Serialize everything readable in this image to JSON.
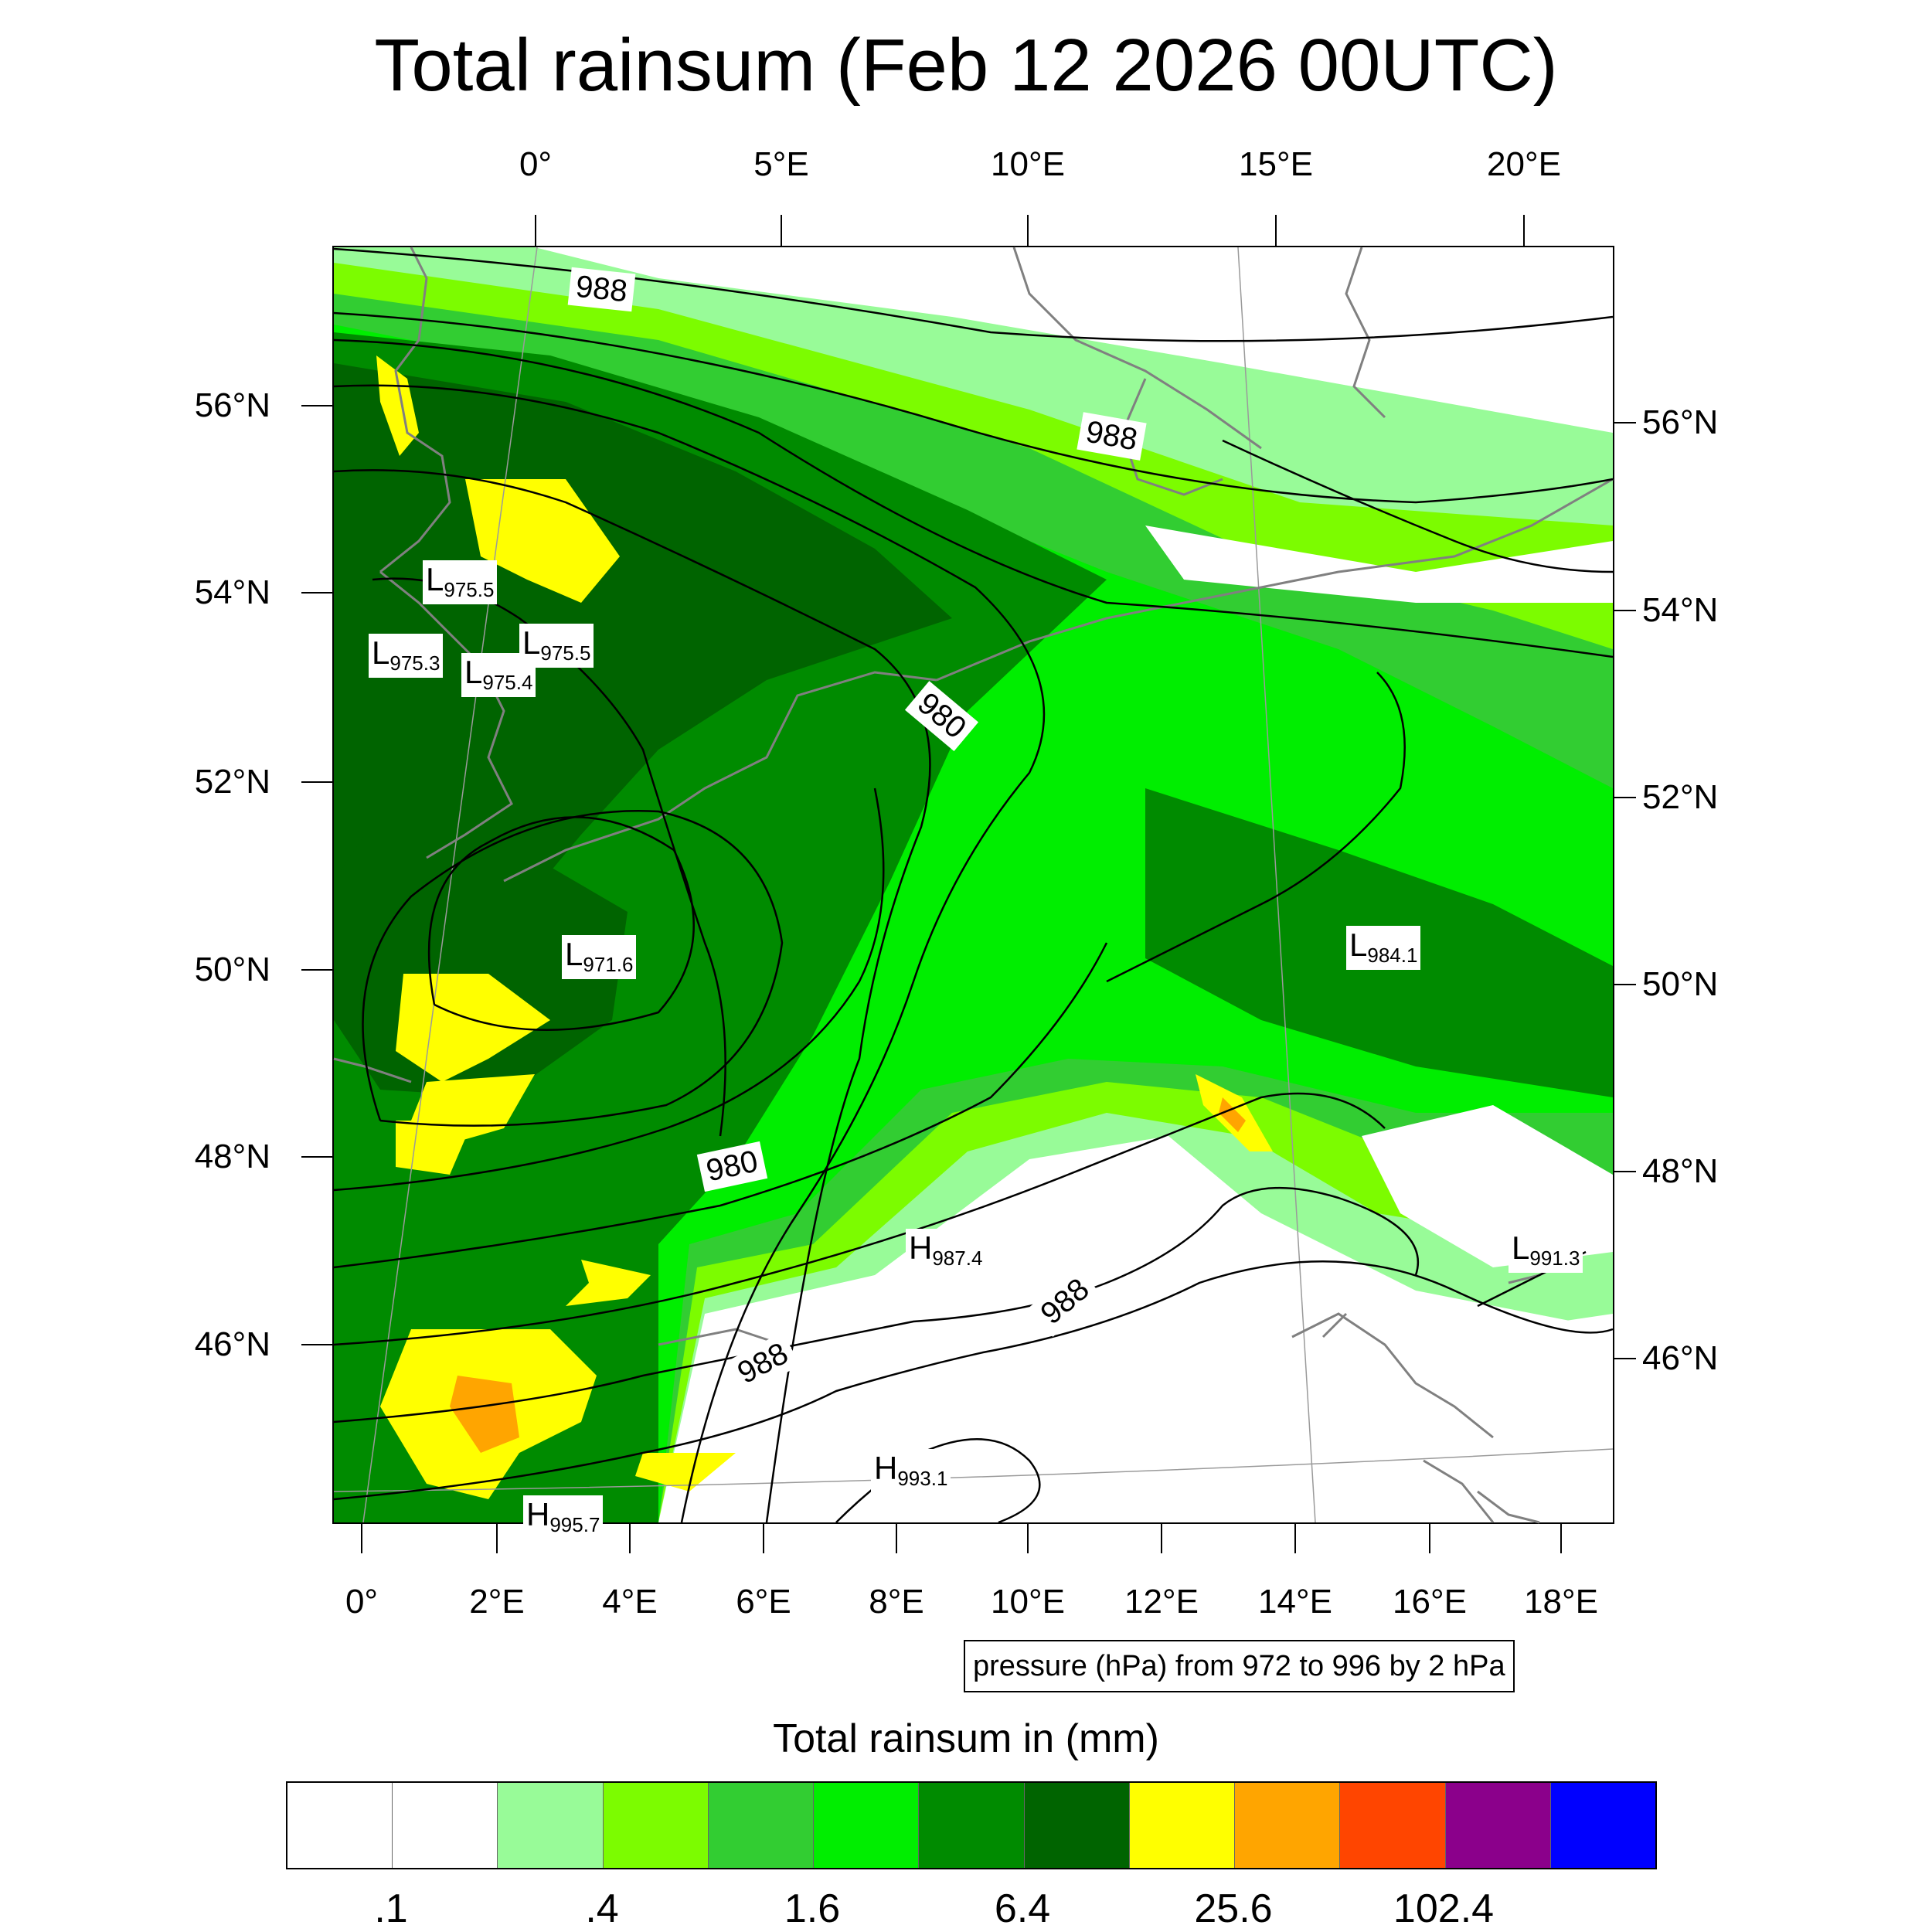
{
  "title": "Total rainsum (Feb 12 2026 00UTC)",
  "top_lon_labels": [
    "0°",
    "5°E",
    "10°E",
    "15°E",
    "20°E"
  ],
  "bottom_lon_labels": [
    "0°",
    "2°E",
    "4°E",
    "6°E",
    "8°E",
    "10°E",
    "12°E",
    "14°E",
    "16°E",
    "18°E"
  ],
  "left_lat_labels": [
    "56°N",
    "54°N",
    "52°N",
    "50°N",
    "48°N",
    "46°N"
  ],
  "right_lat_labels": [
    "56°N",
    "54°N",
    "52°N",
    "50°N",
    "48°N",
    "46°N"
  ],
  "lows": [
    {
      "letter": "L",
      "value": "975.5"
    },
    {
      "letter": "L",
      "value": "975.3"
    },
    {
      "letter": "L",
      "value": "975.4"
    },
    {
      "letter": "L",
      "value": "975.5"
    },
    {
      "letter": "L",
      "value": "971.6"
    },
    {
      "letter": "L",
      "value": "984.1"
    },
    {
      "letter": "L",
      "value": "991.3"
    }
  ],
  "highs": [
    {
      "letter": "H",
      "value": "987.4"
    },
    {
      "letter": "H",
      "value": "993.1"
    },
    {
      "letter": "H",
      "value": "995.7"
    }
  ],
  "isobar_labels": [
    "988",
    "988",
    "980",
    "980",
    "988",
    "988"
  ],
  "caption": "pressure (hPa) from 972 to 996 by 2 hPa",
  "colorbar": {
    "title": "Total rainsum in (mm)",
    "colors": [
      "#ffffff",
      "#ffffff",
      "#98fb98",
      "#7cfc00",
      "#32cd32",
      "#00ee00",
      "#008b00",
      "#006400",
      "#ffff00",
      "#ffa500",
      "#ff4500",
      "#8b008b",
      "#0000ff"
    ],
    "tick_labels": [
      ".1",
      ".4",
      "1.6",
      "6.4",
      "25.6",
      "102.4"
    ]
  },
  "palette": {
    "light_green": "#98fb98",
    "lawn_green": "#7cfc00",
    "lime_green": "#32cd32",
    "green": "#00ee00",
    "dark_green": "#008b00",
    "darkest_green": "#006400",
    "yellow": "#ffff00",
    "orange": "#ffa500",
    "coast": "#808080",
    "isobar": "#000000"
  }
}
